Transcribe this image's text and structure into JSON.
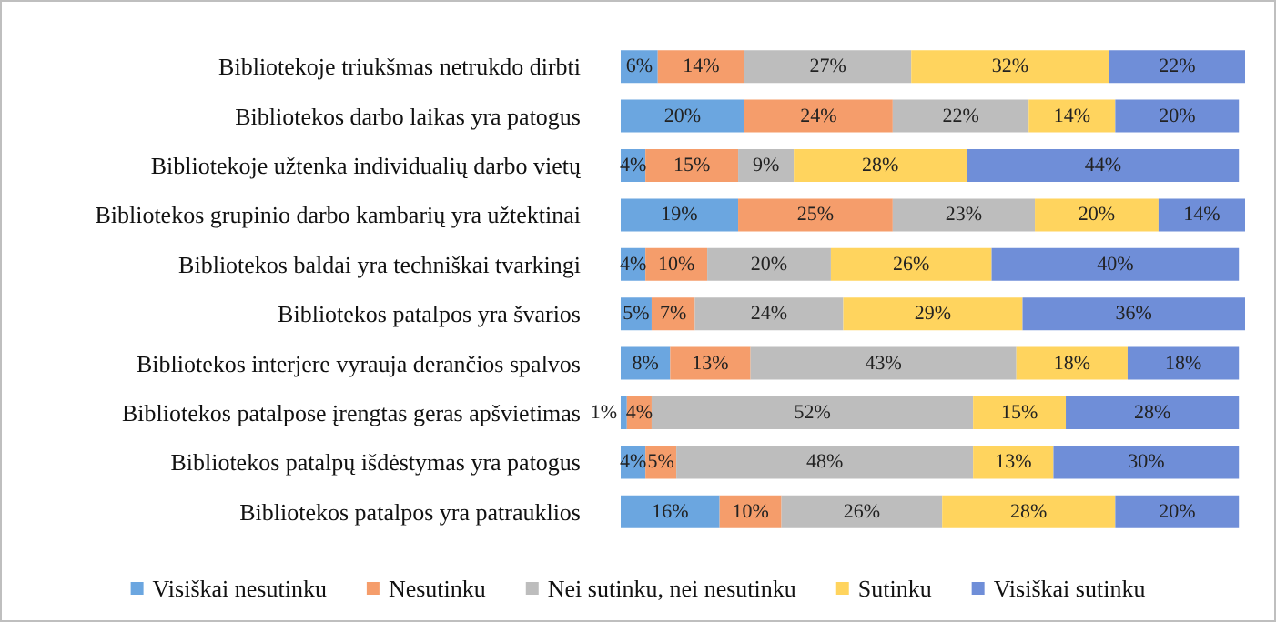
{
  "chart_data": {
    "type": "bar",
    "orientation": "horizontal",
    "stacked": true,
    "legend": "bottom",
    "grid": false,
    "categories": [
      "Bibliotekoje triukšmas netrukdo dirbti",
      "Bibliotekos darbo laikas yra patogus",
      "Bibliotekoje užtenka individualių darbo vietų",
      "Bibliotekos grupinio darbo kambarių yra užtektinai",
      "Bibliotekos baldai yra techniškai tvarkingi",
      "Bibliotekos patalpos yra švarios",
      "Bibliotekos interjere vyrauja derančios spalvos",
      "Bibliotekos patalpose įrengtas geras apšvietimas",
      "Bibliotekos patalpų išdėstymas yra patogus",
      "Bibliotekos patalpos yra patrauklios"
    ],
    "series": [
      {
        "name": "Visiškai nesutinku",
        "color": "#6ba6e0",
        "values": [
          6,
          20,
          4,
          19,
          4,
          5,
          8,
          1,
          4,
          16
        ],
        "value_labels": [
          "6%",
          "20%",
          "4%",
          "19%",
          "4%",
          "5%",
          "8%",
          "1%",
          "4%",
          "16%"
        ]
      },
      {
        "name": "Nesutinku",
        "color": "#f59d6b",
        "values": [
          14,
          24,
          15,
          25,
          10,
          7,
          13,
          4,
          5,
          10
        ],
        "value_labels": [
          "14%",
          "24%",
          "15%",
          "25%",
          "10%",
          "7%",
          "13%",
          "4%",
          "5%",
          "10%"
        ]
      },
      {
        "name": "Nei sutinku, nei nesutinku",
        "color": "#bdbdbd",
        "values": [
          27,
          22,
          9,
          23,
          20,
          24,
          43,
          52,
          48,
          26
        ],
        "value_labels": [
          "27%",
          "22%",
          "9%",
          "23%",
          "20%",
          "24%",
          "43%",
          "52%",
          "48%",
          "26%"
        ]
      },
      {
        "name": "Sutinku",
        "color": "#ffd45e",
        "values": [
          32,
          14,
          28,
          20,
          26,
          29,
          18,
          15,
          13,
          28
        ],
        "value_labels": [
          "32%",
          "14%",
          "28%",
          "20%",
          "26%",
          "29%",
          "18%",
          "15%",
          "13%",
          "28%"
        ]
      },
      {
        "name": "Visiškai sutinku",
        "color": "#6f8ed8",
        "values": [
          22,
          20,
          44,
          14,
          40,
          36,
          18,
          28,
          30,
          20
        ],
        "value_labels": [
          "22%",
          "20%",
          "44%",
          "14%",
          "40%",
          "36%",
          "18%",
          "28%",
          "30%",
          "20%"
        ]
      }
    ]
  }
}
